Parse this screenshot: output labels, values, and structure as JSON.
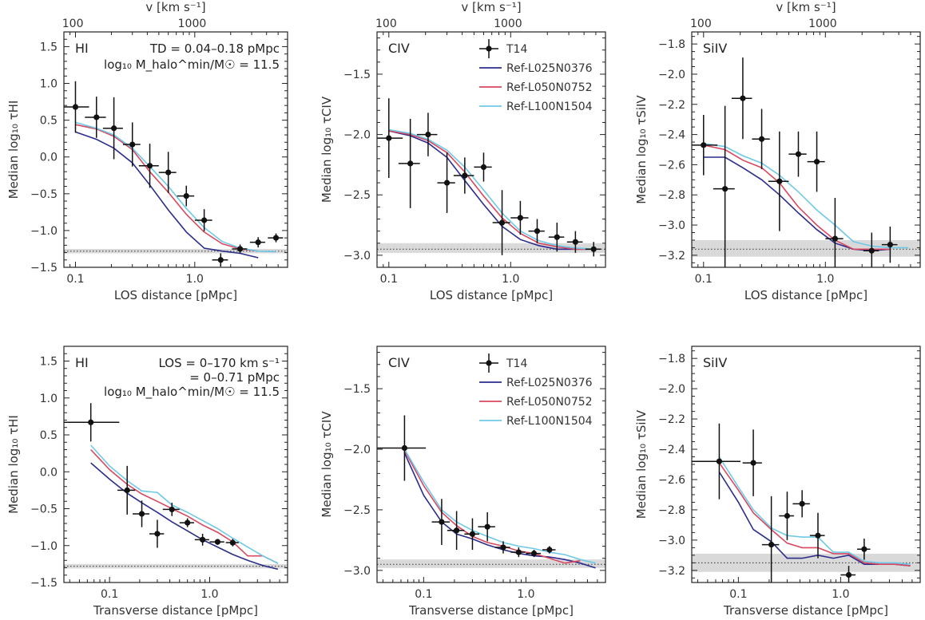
{
  "colors": {
    "L025": "#2b2c8c",
    "L050": "#d9485f",
    "L100": "#6ec9e8",
    "points": "#111111",
    "noise_band": "#d9d9d9"
  },
  "legend": {
    "points": "T14",
    "L025": "Ref-L025N0376",
    "L050": "Ref-L050N0752",
    "L100": "Ref-L100N1504"
  },
  "text": {
    "top_axis_label": "v [km s⁻¹]",
    "top_ticks": [
      "100",
      "1000"
    ],
    "los_xlabel": "LOS distance [pMpc]",
    "trans_xlabel": "Transverse distance [pMpc]",
    "xticks": [
      "0.1",
      "1.0"
    ],
    "ylabel_HI": "Median log₁₀ τHI",
    "ylabel_CIV": "Median log₁₀ τCIV",
    "ylabel_SiIV": "Median log₁₀ τSiIV",
    "yticks_HI": [
      "1.5",
      "1.0",
      "0.5",
      "0.0",
      "−0.5",
      "−1.0",
      "−1.5"
    ],
    "yticks_CIV": [
      "−1.5",
      "−2.0",
      "−2.5",
      "−3.0"
    ],
    "yticks_SiIV": [
      "−1.8",
      "−2.0",
      "−2.2",
      "−2.4",
      "−2.6",
      "−2.8",
      "−3.0",
      "−3.2"
    ],
    "ion_HI": "HI",
    "ion_CIV": "CIV",
    "ion_SiIV": "SiIV",
    "ann_td": "TD = 0.04–0.18 pMpc",
    "ann_mhalo": "log₁₀ M_halo^min/M☉ = 11.5",
    "ann_los1": "LOS = 0–170 km s⁻¹",
    "ann_los2": "= 0–0.71 pMpc"
  },
  "chart_data": [
    {
      "type": "scatter",
      "panel": "top-left",
      "ion": "HI",
      "xscale": "log",
      "xlim": [
        0.08,
        6.0
      ],
      "ylim": [
        -1.5,
        1.7
      ],
      "noise_level": -1.28,
      "noise_band": [
        -1.31,
        -1.25
      ],
      "points": {
        "x": [
          0.1,
          0.15,
          0.21,
          0.3,
          0.42,
          0.6,
          0.85,
          1.2,
          1.65,
          2.4,
          3.4,
          4.8
        ],
        "y": [
          0.68,
          0.54,
          0.39,
          0.17,
          -0.12,
          -0.21,
          -0.53,
          -0.86,
          -1.4,
          -1.25,
          -1.16,
          -1.1
        ],
        "yerr": [
          0.35,
          0.28,
          0.42,
          0.3,
          0.3,
          0.28,
          0.14,
          0.15,
          0.09,
          0.06,
          0.07,
          0.06
        ],
        "xerr": [
          0.03,
          0.03,
          0.04,
          0.05,
          0.08,
          0.1,
          0.14,
          0.2,
          0.25,
          0.35,
          0.5,
          0.7
        ]
      },
      "series": [
        {
          "name": "Ref-L025N0376",
          "x": [
            0.1,
            0.15,
            0.21,
            0.3,
            0.42,
            0.6,
            0.85,
            1.2,
            1.7,
            2.4,
            3.4
          ],
          "y": [
            0.34,
            0.24,
            0.12,
            -0.08,
            -0.38,
            -0.72,
            -1.02,
            -1.24,
            -1.28,
            -1.31,
            -1.37
          ]
        },
        {
          "name": "Ref-L050N0752",
          "x": [
            0.1,
            0.15,
            0.21,
            0.3,
            0.42,
            0.6,
            0.85,
            1.2,
            1.7,
            2.4,
            3.4
          ],
          "y": [
            0.44,
            0.38,
            0.28,
            0.1,
            -0.2,
            -0.48,
            -0.78,
            -1.02,
            -1.18,
            -1.25,
            -1.28
          ]
        },
        {
          "name": "Ref-L100N1504",
          "x": [
            0.1,
            0.15,
            0.21,
            0.3,
            0.42,
            0.6,
            0.85,
            1.2,
            1.7,
            2.4,
            3.4,
            4.8
          ],
          "y": [
            0.47,
            0.39,
            0.3,
            0.12,
            -0.13,
            -0.4,
            -0.7,
            -0.96,
            -1.15,
            -1.24,
            -1.28,
            -1.29
          ]
        }
      ]
    },
    {
      "type": "scatter",
      "panel": "top-middle",
      "ion": "CIV",
      "xscale": "log",
      "xlim": [
        0.08,
        6.0
      ],
      "ylim": [
        -3.1,
        -1.15
      ],
      "noise_level": -2.95,
      "noise_band": [
        -2.98,
        -2.9
      ],
      "points": {
        "x": [
          0.1,
          0.15,
          0.21,
          0.3,
          0.42,
          0.6,
          0.85,
          1.2,
          1.65,
          2.4,
          3.4,
          4.8
        ],
        "y": [
          -2.03,
          -2.24,
          -2.0,
          -2.4,
          -2.34,
          -2.27,
          -2.73,
          -2.69,
          -2.8,
          -2.85,
          -2.89,
          -2.95
        ],
        "yerr": [
          0.33,
          0.37,
          0.18,
          0.25,
          0.15,
          0.12,
          0.27,
          0.14,
          0.1,
          0.12,
          0.09,
          0.06
        ],
        "xerr": [
          0.03,
          0.03,
          0.04,
          0.05,
          0.08,
          0.1,
          0.14,
          0.2,
          0.25,
          0.35,
          0.5,
          0.7
        ]
      },
      "series": [
        {
          "name": "Ref-L025N0376",
          "x": [
            0.1,
            0.15,
            0.21,
            0.3,
            0.42,
            0.6,
            0.85,
            1.2,
            1.7,
            2.4,
            3.4,
            4.8
          ],
          "y": [
            -1.97,
            -2.01,
            -2.07,
            -2.19,
            -2.38,
            -2.58,
            -2.76,
            -2.87,
            -2.92,
            -2.95,
            -2.95,
            -2.95
          ]
        },
        {
          "name": "Ref-L050N0752",
          "x": [
            0.1,
            0.15,
            0.21,
            0.3,
            0.42,
            0.6,
            0.85,
            1.2,
            1.7,
            2.4,
            3.4,
            4.8
          ],
          "y": [
            -1.97,
            -2.0,
            -2.05,
            -2.15,
            -2.31,
            -2.51,
            -2.69,
            -2.82,
            -2.9,
            -2.93,
            -2.95,
            -2.95
          ]
        },
        {
          "name": "Ref-L100N1504",
          "x": [
            0.1,
            0.15,
            0.21,
            0.3,
            0.42,
            0.6,
            0.85,
            1.2,
            1.7,
            2.4,
            3.4,
            4.8
          ],
          "y": [
            -1.96,
            -1.99,
            -2.04,
            -2.13,
            -2.27,
            -2.46,
            -2.65,
            -2.8,
            -2.88,
            -2.92,
            -2.94,
            -2.95
          ]
        }
      ]
    },
    {
      "type": "scatter",
      "panel": "top-right",
      "ion": "SiIV",
      "xscale": "log",
      "xlim": [
        0.08,
        6.0
      ],
      "ylim": [
        -3.28,
        -1.72
      ],
      "noise_level": -3.16,
      "noise_band": [
        -3.21,
        -3.1
      ],
      "points": {
        "x": [
          0.1,
          0.15,
          0.21,
          0.3,
          0.42,
          0.6,
          0.85,
          1.2,
          2.4,
          3.4
        ],
        "y": [
          -2.47,
          -2.76,
          -2.16,
          -2.43,
          -2.71,
          -2.53,
          -2.58,
          -3.09,
          -3.17,
          -3.13
        ],
        "yerr": [
          0.2,
          0.55,
          0.27,
          0.2,
          0.33,
          0.15,
          0.2,
          0.27,
          0.12,
          0.12
        ],
        "xerr": [
          0.03,
          0.03,
          0.04,
          0.05,
          0.08,
          0.1,
          0.14,
          0.2,
          0.35,
          0.5
        ]
      },
      "series": [
        {
          "name": "Ref-L025N0376",
          "x": [
            0.1,
            0.15,
            0.21,
            0.3,
            0.42,
            0.6,
            0.85,
            1.2,
            1.7,
            2.4,
            3.4
          ],
          "y": [
            -2.55,
            -2.55,
            -2.62,
            -2.7,
            -2.8,
            -2.92,
            -3.03,
            -3.12,
            -3.16,
            -3.17,
            -3.16
          ]
        },
        {
          "name": "Ref-L050N0752",
          "x": [
            0.1,
            0.15,
            0.21,
            0.3,
            0.42,
            0.6,
            0.85,
            1.2,
            1.7,
            2.4,
            3.4
          ],
          "y": [
            -2.47,
            -2.5,
            -2.57,
            -2.62,
            -2.72,
            -2.88,
            -3.0,
            -3.1,
            -3.16,
            -3.16,
            -3.16
          ]
        },
        {
          "name": "Ref-L100N1504",
          "x": [
            0.1,
            0.15,
            0.21,
            0.3,
            0.42,
            0.6,
            0.85,
            1.2,
            1.7,
            2.4,
            3.4,
            4.8
          ],
          "y": [
            -2.46,
            -2.48,
            -2.54,
            -2.59,
            -2.67,
            -2.78,
            -2.9,
            -3.0,
            -3.11,
            -3.14,
            -3.15,
            -3.15
          ]
        }
      ]
    },
    {
      "type": "scatter",
      "panel": "bottom-left",
      "ion": "HI",
      "xscale": "log",
      "xlim": [
        0.035,
        6.0
      ],
      "ylim": [
        -1.5,
        1.7
      ],
      "noise_level": -1.28,
      "noise_band": [
        -1.31,
        -1.25
      ],
      "points": {
        "x": [
          0.065,
          0.15,
          0.21,
          0.3,
          0.42,
          0.6,
          0.85,
          1.2,
          1.7
        ],
        "y": [
          0.67,
          -0.25,
          -0.57,
          -0.84,
          -0.51,
          -0.69,
          -0.92,
          -0.95,
          -0.96
        ],
        "yerr": [
          0.26,
          0.33,
          0.18,
          0.19,
          0.09,
          0.06,
          0.08,
          0.04,
          0.05
        ],
        "xerr": [
          0.06,
          0.03,
          0.04,
          0.05,
          0.08,
          0.1,
          0.14,
          0.2,
          0.25
        ]
      },
      "series": [
        {
          "name": "Ref-L025N0376",
          "x": [
            0.065,
            0.1,
            0.15,
            0.21,
            0.3,
            0.42,
            0.6,
            0.85,
            1.2,
            1.7,
            2.4,
            3.4,
            4.8
          ],
          "y": [
            0.12,
            -0.1,
            -0.29,
            -0.42,
            -0.55,
            -0.68,
            -0.8,
            -0.92,
            -1.02,
            -1.12,
            -1.2,
            -1.27,
            -1.32
          ]
        },
        {
          "name": "Ref-L050N0752",
          "x": [
            0.065,
            0.1,
            0.15,
            0.21,
            0.3,
            0.42,
            0.6,
            0.85,
            1.2,
            1.7,
            2.4,
            3.4,
            4.8
          ],
          "y": [
            0.3,
            0.03,
            -0.17,
            -0.3,
            -0.4,
            -0.5,
            -0.6,
            -0.72,
            -0.82,
            -0.95,
            -1.14,
            -1.14,
            -1.24
          ]
        },
        {
          "name": "Ref-L100N1504",
          "x": [
            0.065,
            0.1,
            0.15,
            0.21,
            0.3,
            0.42,
            0.6,
            0.85,
            1.2,
            1.7,
            2.4,
            3.4,
            4.8
          ],
          "y": [
            0.36,
            0.08,
            -0.12,
            -0.26,
            -0.28,
            -0.45,
            -0.55,
            -0.66,
            -0.77,
            -0.9,
            -1.02,
            -1.14,
            -1.24
          ]
        }
      ]
    },
    {
      "type": "scatter",
      "panel": "bottom-middle",
      "ion": "CIV",
      "xscale": "log",
      "xlim": [
        0.035,
        6.0
      ],
      "ylim": [
        -3.1,
        -1.15
      ],
      "noise_level": -2.95,
      "noise_band": [
        -2.98,
        -2.91
      ],
      "points": {
        "x": [
          0.065,
          0.15,
          0.21,
          0.3,
          0.42,
          0.6,
          0.85,
          1.2,
          1.7
        ],
        "y": [
          -1.99,
          -2.6,
          -2.67,
          -2.7,
          -2.64,
          -2.81,
          -2.85,
          -2.86,
          -2.83
        ],
        "yerr": [
          0.27,
          0.19,
          0.16,
          0.13,
          0.12,
          0.05,
          0.04,
          0.03,
          0.03
        ],
        "xerr": [
          0.04,
          0.03,
          0.04,
          0.05,
          0.08,
          0.1,
          0.14,
          0.2,
          0.25
        ]
      },
      "series": [
        {
          "name": "Ref-L025N0376",
          "x": [
            0.065,
            0.1,
            0.15,
            0.21,
            0.3,
            0.42,
            0.6,
            0.85,
            1.2,
            1.7,
            2.4,
            3.4,
            4.8
          ],
          "y": [
            -2.03,
            -2.38,
            -2.6,
            -2.7,
            -2.74,
            -2.79,
            -2.83,
            -2.86,
            -2.88,
            -2.89,
            -2.91,
            -2.94,
            -2.98
          ]
        },
        {
          "name": "Ref-L050N0752",
          "x": [
            0.065,
            0.1,
            0.15,
            0.21,
            0.3,
            0.42,
            0.6,
            0.85,
            1.2,
            1.7,
            2.4,
            3.4
          ],
          "y": [
            -2.01,
            -2.3,
            -2.52,
            -2.63,
            -2.72,
            -2.77,
            -2.8,
            -2.84,
            -2.86,
            -2.9,
            -2.94,
            -2.92
          ]
        },
        {
          "name": "Ref-L100N1504",
          "x": [
            0.065,
            0.1,
            0.15,
            0.21,
            0.3,
            0.42,
            0.6,
            0.85,
            1.2,
            1.7,
            2.4,
            3.4,
            4.8
          ],
          "y": [
            -2.0,
            -2.27,
            -2.5,
            -2.6,
            -2.67,
            -2.72,
            -2.77,
            -2.8,
            -2.82,
            -2.85,
            -2.87,
            -2.91,
            -2.94
          ]
        }
      ]
    },
    {
      "type": "scatter",
      "panel": "bottom-right",
      "ion": "SiIV",
      "xscale": "log",
      "xlim": [
        0.035,
        6.0
      ],
      "ylim": [
        -3.28,
        -1.72
      ],
      "noise_level": -3.15,
      "noise_band": [
        -3.21,
        -3.09
      ],
      "points": {
        "x": [
          0.065,
          0.14,
          0.21,
          0.3,
          0.42,
          0.6,
          1.2,
          1.7
        ],
        "y": [
          -2.48,
          -2.49,
          -3.03,
          -2.84,
          -2.76,
          -2.97,
          -3.23,
          -3.06
        ],
        "yerr": [
          0.25,
          0.22,
          0.32,
          0.16,
          0.09,
          0.15,
          0.06,
          0.07
        ],
        "xerr": [
          0.04,
          0.03,
          0.04,
          0.05,
          0.08,
          0.1,
          0.2,
          0.25
        ]
      },
      "series": [
        {
          "name": "Ref-L025N0376",
          "x": [
            0.065,
            0.1,
            0.14,
            0.21,
            0.3,
            0.42,
            0.6,
            0.85,
            1.2,
            1.7,
            2.4,
            3.4,
            4.8
          ],
          "y": [
            -2.55,
            -2.75,
            -2.93,
            -3.01,
            -3.12,
            -3.12,
            -3.1,
            -3.12,
            -3.1,
            -3.16,
            -3.16,
            -3.16,
            -3.17
          ]
        },
        {
          "name": "Ref-L050N0752",
          "x": [
            0.065,
            0.1,
            0.14,
            0.21,
            0.3,
            0.42,
            0.6,
            0.85,
            1.2,
            1.7,
            2.4,
            3.4,
            4.8
          ],
          "y": [
            -2.49,
            -2.67,
            -2.82,
            -2.93,
            -3.02,
            -3.05,
            -3.05,
            -3.09,
            -3.09,
            -3.15,
            -3.16,
            -3.16,
            -3.17
          ]
        },
        {
          "name": "Ref-L100N1504",
          "x": [
            0.065,
            0.1,
            0.14,
            0.21,
            0.3,
            0.42,
            0.6,
            0.85,
            1.2,
            1.7,
            2.4,
            3.4,
            4.8
          ],
          "y": [
            -2.45,
            -2.65,
            -2.8,
            -2.92,
            -2.97,
            -2.98,
            -2.98,
            -3.08,
            -3.08,
            -3.14,
            -3.15,
            -3.15,
            -3.16
          ]
        }
      ]
    }
  ]
}
